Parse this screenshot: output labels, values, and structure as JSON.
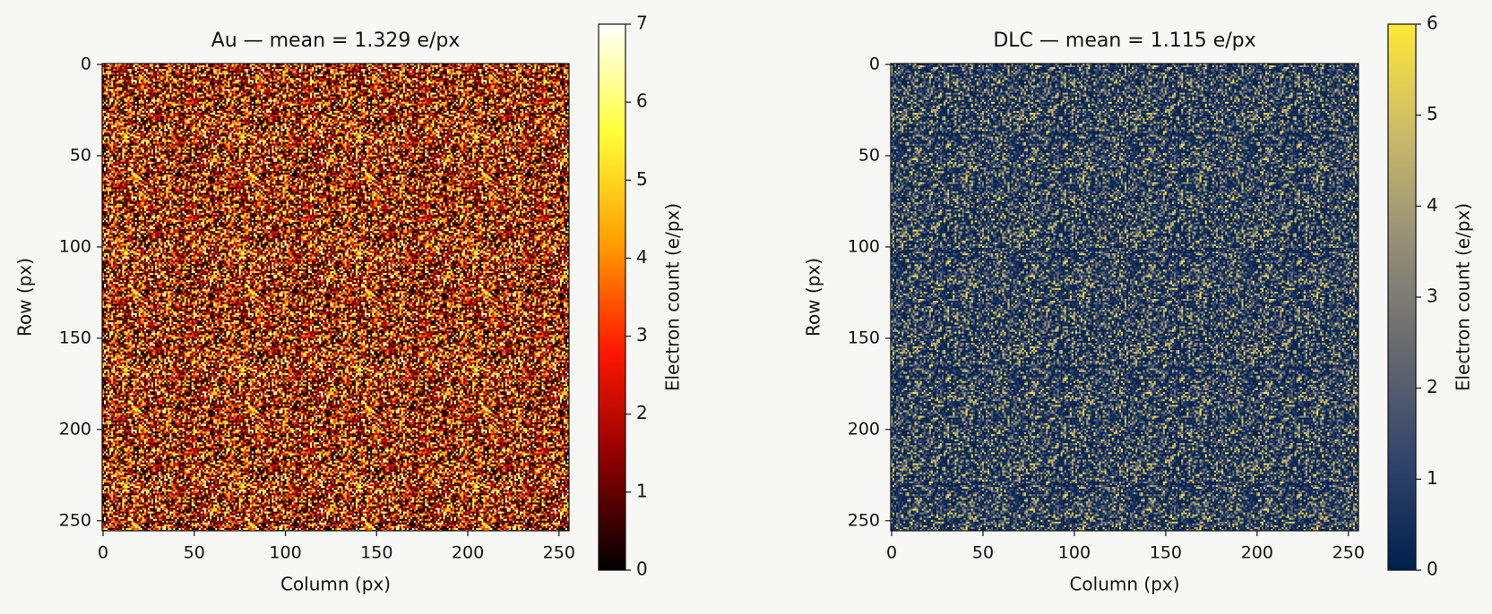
{
  "chart_data": [
    {
      "type": "heatmap",
      "title": "Au  —  mean = 1.329 e/px",
      "x_label": "Column (px)",
      "y_label": "Row (px)",
      "colorbar_label": "Electron count (e/px)",
      "xlim": [
        -0.5,
        255.5
      ],
      "ylim": [
        255.5,
        -0.5
      ],
      "xticks": [
        0,
        50,
        100,
        150,
        200,
        250
      ],
      "yticks": [
        0,
        50,
        100,
        150,
        200,
        250
      ],
      "clim": [
        0,
        7
      ],
      "cticks": [
        0,
        1,
        2,
        3,
        4,
        5,
        6,
        7
      ],
      "colormap": [
        "#000000",
        "#8c0000",
        "#ff1700",
        "#ff9e00",
        "#ffff36",
        "#ffffff"
      ]
    },
    {
      "type": "heatmap",
      "title": "DLC  —  mean = 1.115 e/px",
      "x_label": "Column (px)",
      "y_label": "Row (px)",
      "colorbar_label": "Electron count (e/px)",
      "xlim": [
        -0.5,
        255.5
      ],
      "ylim": [
        255.5,
        -0.5
      ],
      "xticks": [
        0,
        50,
        100,
        150,
        200,
        250
      ],
      "yticks": [
        0,
        50,
        100,
        150,
        200,
        250
      ],
      "clim": [
        0,
        6
      ],
      "cticks": [
        0,
        1,
        2,
        3,
        4,
        5,
        6
      ],
      "colormap": [
        "#00204d",
        "#31446b",
        "#666870",
        "#958f78",
        "#cbba69",
        "#fee838"
      ]
    }
  ]
}
